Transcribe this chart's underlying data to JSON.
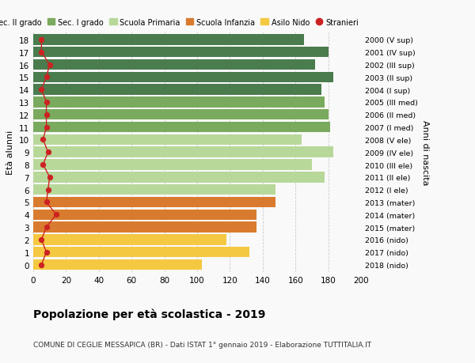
{
  "ages": [
    18,
    17,
    16,
    15,
    14,
    13,
    12,
    11,
    10,
    9,
    8,
    7,
    6,
    5,
    4,
    3,
    2,
    1,
    0
  ],
  "years": [
    "2000 (V sup)",
    "2001 (IV sup)",
    "2002 (III sup)",
    "2003 (II sup)",
    "2004 (I sup)",
    "2005 (III med)",
    "2006 (II med)",
    "2007 (I med)",
    "2008 (V ele)",
    "2009 (IV ele)",
    "2010 (III ele)",
    "2011 (II ele)",
    "2012 (I ele)",
    "2013 (mater)",
    "2014 (mater)",
    "2015 (mater)",
    "2016 (nido)",
    "2017 (nido)",
    "2018 (nido)"
  ],
  "bar_values": [
    165,
    180,
    172,
    183,
    176,
    178,
    180,
    181,
    164,
    183,
    170,
    178,
    148,
    148,
    136,
    136,
    118,
    132,
    103
  ],
  "stranieri": [
    5,
    5,
    10,
    8,
    5,
    8,
    8,
    8,
    6,
    9,
    6,
    10,
    9,
    8,
    14,
    8,
    5,
    8,
    5
  ],
  "bar_colors": [
    "#4a7c4e",
    "#4a7c4e",
    "#4a7c4e",
    "#4a7c4e",
    "#4a7c4e",
    "#7aaa5e",
    "#7aaa5e",
    "#7aaa5e",
    "#b8d89a",
    "#b8d89a",
    "#b8d89a",
    "#b8d89a",
    "#b8d89a",
    "#d97b2e",
    "#d97b2e",
    "#d97b2e",
    "#f5c842",
    "#f5c842",
    "#f5c842"
  ],
  "legend_colors": [
    "#4a7c4e",
    "#7aaa5e",
    "#b8d89a",
    "#d97b2e",
    "#f5c842",
    "#cc2222"
  ],
  "legend_labels": [
    "Sec. II grado",
    "Sec. I grado",
    "Scuola Primaria",
    "Scuola Infanzia",
    "Asilo Nido",
    "Stranieri"
  ],
  "title": "Popolazione per età scolastica - 2019",
  "subtitle": "COMUNE DI CEGLIE MESSAPICA (BR) - Dati ISTAT 1° gennaio 2019 - Elaborazione TUTTITALIA.IT",
  "xlabel_ages": "Età alunni",
  "ylabel_years": "Anni di nascita",
  "xlim": [
    0,
    200
  ],
  "xticks": [
    0,
    20,
    40,
    60,
    80,
    100,
    120,
    140,
    160,
    180,
    200
  ],
  "bg_color": "#f9f9f9",
  "grid_color": "#cccccc",
  "stranieri_color": "#cc2222",
  "bar_height": 0.85
}
